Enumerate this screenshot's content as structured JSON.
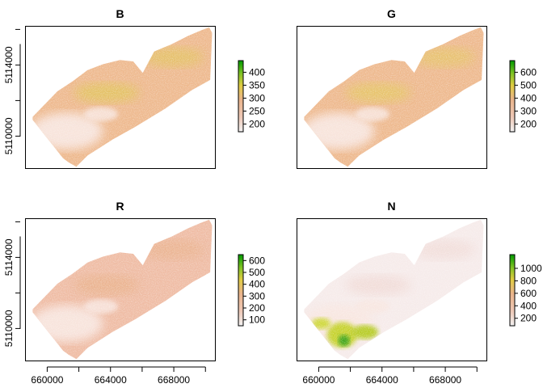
{
  "chart_data": [
    {
      "type": "heatmap",
      "title": "B",
      "x_ticks": [],
      "y_ticks": [
        "5110000",
        "5114000"
      ],
      "legend": {
        "ticks": [
          "200",
          "250",
          "300",
          "350",
          "400"
        ],
        "values": [
          200,
          250,
          300,
          350,
          400
        ],
        "min": 170,
        "max": 445
      },
      "fill": "#eeb98e",
      "highlight": "#e3c264",
      "green_patch": false
    },
    {
      "type": "heatmap",
      "title": "G",
      "x_ticks": [],
      "y_ticks": [],
      "legend": {
        "ticks": [
          "200",
          "300",
          "400",
          "500",
          "600"
        ],
        "values": [
          200,
          300,
          400,
          500,
          600
        ],
        "min": 140,
        "max": 690
      },
      "fill": "#eeb98e",
      "highlight": "#e6c46a",
      "green_patch": false
    },
    {
      "type": "heatmap",
      "title": "R",
      "x_ticks": [],
      "y_ticks": [
        "5110000",
        "5114000"
      ],
      "legend": {
        "ticks": [
          "100",
          "200",
          "300",
          "400",
          "500",
          "600"
        ],
        "values": [
          100,
          200,
          300,
          400,
          500,
          600
        ],
        "min": 50,
        "max": 650
      },
      "fill": "#efbca4",
      "highlight": "#eab38f",
      "green_patch": false
    },
    {
      "type": "heatmap",
      "title": "N",
      "x_ticks": [],
      "y_ticks": [],
      "legend": {
        "ticks": [
          "200",
          "400",
          "600",
          "800",
          "1000"
        ],
        "values": [
          200,
          400,
          600,
          800,
          1000
        ],
        "min": 80,
        "max": 1220
      },
      "fill": "#f6ebea",
      "highlight": "#f1dcd8",
      "green_patch": true
    }
  ],
  "x_axis": {
    "ticks": [
      "660000",
      "664000",
      "668000"
    ],
    "values": [
      660000,
      664000,
      668000
    ],
    "range": [
      658600,
      670600
    ]
  },
  "y_axis": {
    "values": [
      5110000,
      5114000
    ],
    "range": [
      5108200,
      5116200
    ]
  }
}
